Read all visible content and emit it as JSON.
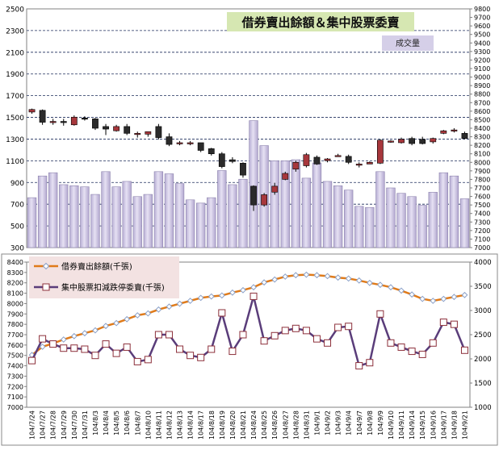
{
  "chart_data": [
    {
      "type": "candlestick+bar",
      "title": "借券賣出餘額＆集中股票委賣",
      "volume_label": "成交量",
      "x_labels": [
        "104/7/24",
        "104/7/27",
        "104/7/28",
        "104/7/29",
        "104/7/30",
        "104/7/31",
        "104/8/3",
        "104/8/4",
        "104/8/5",
        "104/8/6",
        "104/8/7",
        "104/8/10",
        "104/8/11",
        "104/8/12",
        "104/8/13",
        "104/8/14",
        "104/8/17",
        "104/8/18",
        "104/8/19",
        "104/8/20",
        "104/8/21",
        "104/8/24",
        "104/8/25",
        "104/8/26",
        "104/8/27",
        "104/8/28",
        "104/8/31",
        "104/9/1",
        "104/9/2",
        "104/9/3",
        "104/9/4",
        "104/9/7",
        "104/9/8",
        "104/9/9",
        "104/9/10",
        "104/9/11",
        "104/9/14",
        "104/9/15",
        "104/9/16",
        "104/9/17",
        "104/9/18",
        "104/9/21"
      ],
      "left_axis": {
        "ylim": [
          300,
          2500
        ],
        "ticks": [
          300,
          500,
          700,
          900,
          1100,
          1300,
          1500,
          1700,
          1900,
          2100,
          2300,
          2500
        ]
      },
      "right_axis": {
        "ylim": [
          7000,
          9800
        ],
        "ticks": [
          7000,
          7100,
          7200,
          7300,
          7400,
          7500,
          7600,
          7700,
          7800,
          7900,
          8000,
          8100,
          8200,
          8300,
          8400,
          8500,
          8600,
          8700,
          8800,
          8900,
          9000,
          9100,
          9200,
          9300,
          9400,
          9500,
          9600,
          9700,
          9800
        ]
      },
      "volume": [
        760,
        960,
        990,
        880,
        870,
        860,
        790,
        1000,
        860,
        910,
        770,
        790,
        1000,
        980,
        890,
        740,
        710,
        760,
        1010,
        880,
        930,
        1470,
        1240,
        1100,
        1100,
        1110,
        940,
        1080,
        910,
        870,
        830,
        680,
        670,
        1000,
        850,
        800,
        770,
        690,
        810,
        990,
        960,
        750
      ],
      "ohlc": [
        [
          8590,
          8630,
          8570,
          8620
        ],
        [
          8610,
          8620,
          8440,
          8470
        ],
        [
          8470,
          8510,
          8440,
          8480
        ],
        [
          8480,
          8510,
          8430,
          8470
        ],
        [
          8440,
          8550,
          8430,
          8530
        ],
        [
          8520,
          8540,
          8490,
          8510
        ],
        [
          8510,
          8520,
          8380,
          8400
        ],
        [
          8420,
          8450,
          8320,
          8390
        ],
        [
          8370,
          8440,
          8360,
          8420
        ],
        [
          8420,
          8450,
          8320,
          8340
        ],
        [
          8330,
          8360,
          8290,
          8340
        ],
        [
          8330,
          8360,
          8300,
          8360
        ],
        [
          8420,
          8450,
          8270,
          8290
        ],
        [
          8300,
          8340,
          8190,
          8210
        ],
        [
          8220,
          8250,
          8200,
          8230
        ],
        [
          8230,
          8250,
          8200,
          8230
        ],
        [
          8230,
          8230,
          8120,
          8140
        ],
        [
          8160,
          8170,
          8080,
          8100
        ],
        [
          8100,
          8120,
          7930,
          7950
        ],
        [
          8030,
          8060,
          7990,
          8010
        ],
        [
          7990,
          8000,
          7820,
          7850
        ],
        [
          7720,
          7730,
          7430,
          7500
        ],
        [
          7500,
          7640,
          7480,
          7620
        ],
        [
          7650,
          7760,
          7620,
          7720
        ],
        [
          7800,
          7890,
          7790,
          7870
        ],
        [
          7920,
          8020,
          7890,
          8000
        ],
        [
          7960,
          8110,
          7940,
          8090
        ],
        [
          8060,
          8080,
          7970,
          7980
        ],
        [
          8020,
          8050,
          8000,
          8040
        ],
        [
          8070,
          8100,
          8070,
          8080
        ],
        [
          8070,
          8090,
          7980,
          8000
        ],
        [
          7970,
          8000,
          7940,
          7980
        ],
        [
          7980,
          8010,
          7980,
          8000
        ],
        [
          7990,
          8270,
          7980,
          8260
        ],
        [
          8240,
          8260,
          8230,
          8250
        ],
        [
          8230,
          8290,
          8220,
          8270
        ],
        [
          8280,
          8300,
          8200,
          8220
        ],
        [
          8270,
          8300,
          8210,
          8220
        ],
        [
          8240,
          8290,
          8220,
          8280
        ],
        [
          8340,
          8380,
          8330,
          8370
        ],
        [
          8370,
          8400,
          8350,
          8380
        ],
        [
          8340,
          8360,
          8270,
          8280
        ]
      ]
    },
    {
      "type": "line",
      "left_axis": {
        "ylim": [
          7000,
          8400
        ],
        "ticks": [
          7000,
          7100,
          7200,
          7300,
          7400,
          7500,
          7600,
          7700,
          7800,
          7900,
          8000,
          8100,
          8200,
          8300,
          8400
        ]
      },
      "right_axis": {
        "ylim": [
          1000,
          4000
        ],
        "ticks": [
          1000,
          1500,
          2000,
          2500,
          3000,
          3500,
          4000
        ]
      },
      "x_labels": [
        "104/7/24",
        "104/7/27",
        "104/7/28",
        "104/7/29",
        "104/7/30",
        "104/7/31",
        "104/8/3",
        "104/8/4",
        "104/8/5",
        "104/8/6",
        "104/8/7",
        "104/8/10",
        "104/8/11",
        "104/8/12",
        "104/8/13",
        "104/8/14",
        "104/8/17",
        "104/8/18",
        "104/8/19",
        "104/8/20",
        "104/8/21",
        "104/8/24",
        "104/8/25",
        "104/8/26",
        "104/8/27",
        "104/8/28",
        "104/8/31",
        "104/9/1",
        "104/9/2",
        "104/9/3",
        "104/9/4",
        "104/9/7",
        "104/9/8",
        "104/9/9",
        "104/9/10",
        "104/9/11",
        "104/9/14",
        "104/9/15",
        "104/9/16",
        "104/9/17",
        "104/9/18",
        "104/9/21"
      ],
      "series": [
        {
          "name": "借券賣出餘額(千張)",
          "axis": "right",
          "color": "#e07b1a",
          "values": [
            2080,
            2250,
            2320,
            2400,
            2470,
            2530,
            2590,
            2680,
            2740,
            2820,
            2900,
            2940,
            3020,
            3080,
            3140,
            3200,
            3260,
            3290,
            3310,
            3370,
            3420,
            3480,
            3580,
            3640,
            3700,
            3730,
            3740,
            3730,
            3710,
            3680,
            3660,
            3620,
            3570,
            3530,
            3480,
            3410,
            3330,
            3240,
            3200,
            3240,
            3280,
            3320
          ]
        },
        {
          "name": "集中股票扣減跌停委賣(千張)",
          "axis": "left",
          "color": "#5a3d7a",
          "values": [
            7450,
            7660,
            7610,
            7570,
            7570,
            7560,
            7500,
            7610,
            7520,
            7580,
            7440,
            7460,
            7700,
            7700,
            7560,
            7500,
            7480,
            7560,
            7910,
            7540,
            7700,
            8070,
            7640,
            7690,
            7740,
            7760,
            7740,
            7660,
            7620,
            7770,
            7780,
            7400,
            7430,
            7900,
            7620,
            7580,
            7540,
            7510,
            7620,
            7820,
            7800,
            7550
          ]
        }
      ]
    }
  ]
}
